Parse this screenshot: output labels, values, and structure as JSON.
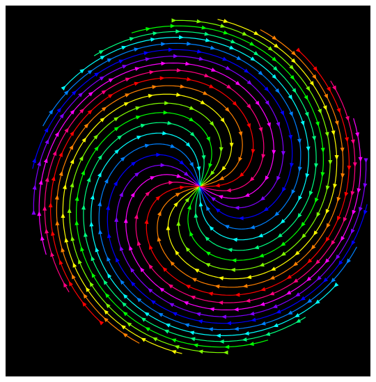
{
  "chart_data": {
    "type": "streamplot",
    "colors": [
      "#ff0000",
      "#ff8000",
      "#ffff00",
      "#80ff00",
      "#00ff00",
      "#00ff80",
      "#00ffff",
      "#0080ff",
      "#0000ff",
      "#8000ff",
      "#ff00ff",
      "#ff0080"
    ]
  }
}
